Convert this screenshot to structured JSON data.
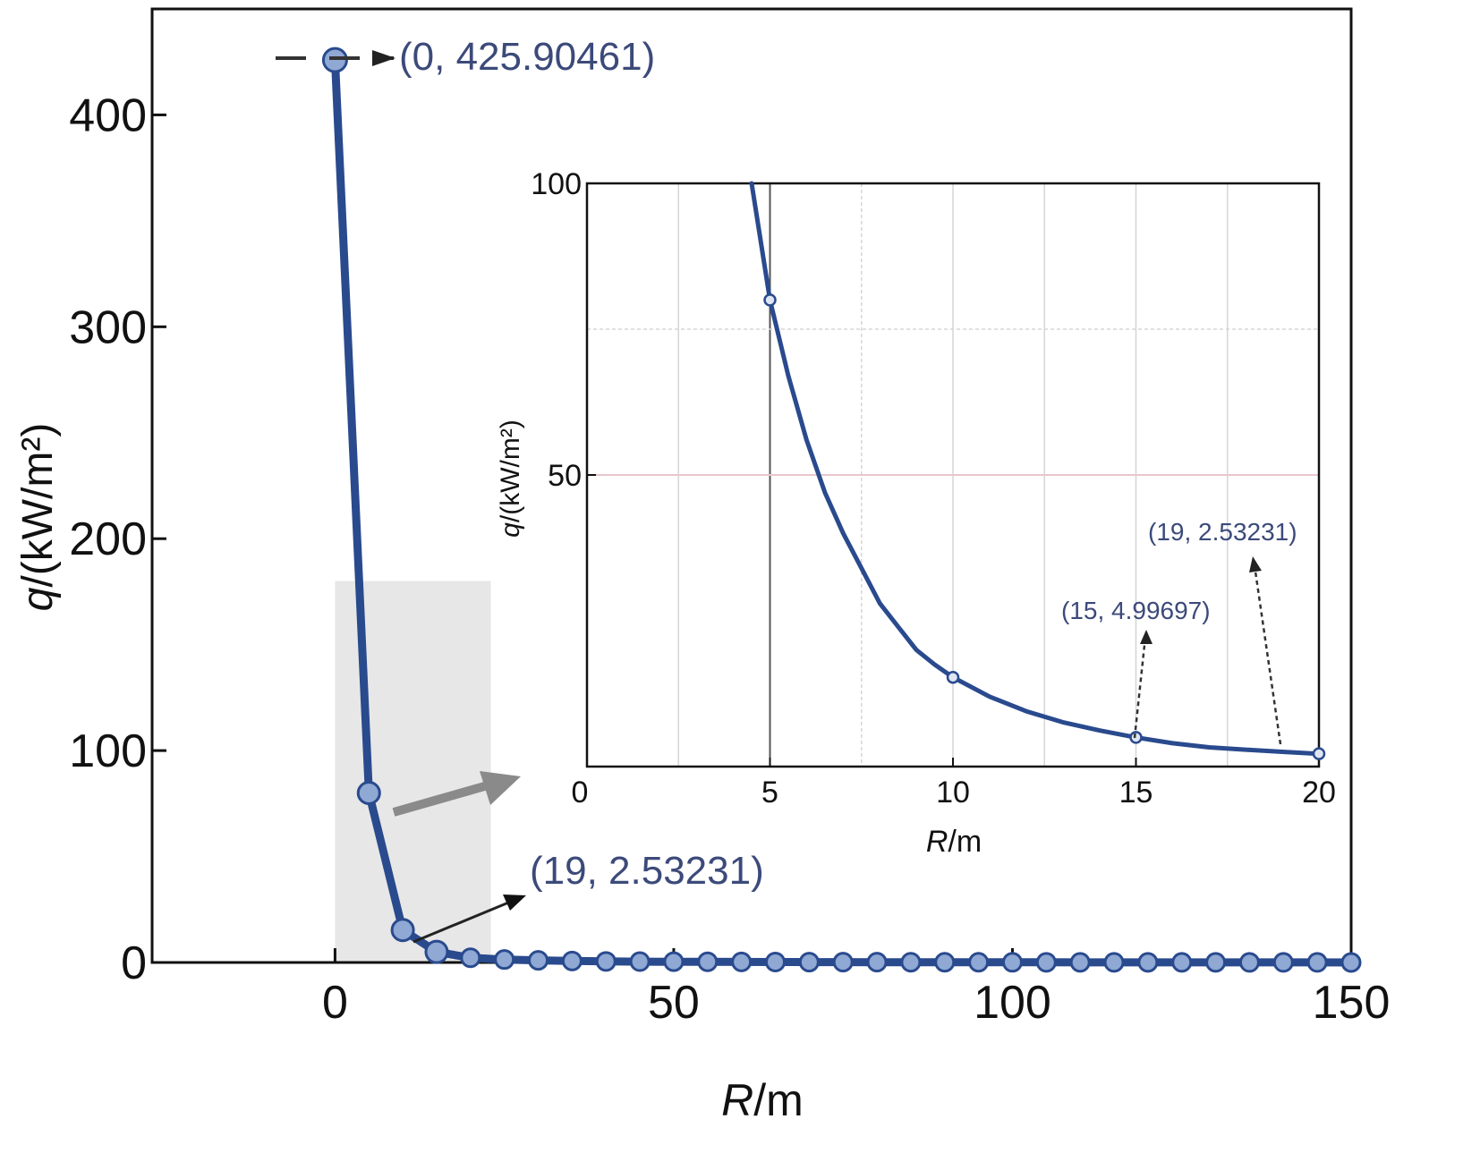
{
  "chart_data": [
    {
      "type": "line",
      "xlabel_var": "R",
      "xlabel_unit": "/m",
      "ylabel_var": "q",
      "ylabel_unit": "/(kW/m²)",
      "xlim": [
        -27,
        150
      ],
      "ylim": [
        0,
        450
      ],
      "xticks": [
        0,
        50,
        100,
        150
      ],
      "yticks": [
        0,
        100,
        200,
        300,
        400
      ],
      "xtick_labels": [
        "0",
        "50",
        "100",
        "150"
      ],
      "ytick_labels": [
        "0",
        "100",
        "200",
        "300",
        "400"
      ],
      "grid": false,
      "series": [
        {
          "x": [
            0,
            5,
            10,
            15,
            20,
            25,
            30,
            35,
            40,
            45,
            50,
            55,
            60,
            65,
            70,
            75,
            80,
            85,
            90,
            95,
            100,
            105,
            110,
            115,
            120,
            125,
            130,
            135,
            140,
            145,
            150
          ],
          "values": [
            425.90461,
            80,
            15.3,
            4.99697,
            2.2,
            1.4,
            1.0,
            0.7,
            0.5,
            0.4,
            0.35,
            0.3,
            0.25,
            0.2,
            0.18,
            0.16,
            0.14,
            0.12,
            0.1,
            0.09,
            0.08,
            0.07,
            0.06,
            0.05,
            0.05,
            0.04,
            0.04,
            0.03,
            0.03,
            0.03,
            0.02
          ]
        }
      ],
      "annotations": [
        {
          "text": "(0, 425.90461)",
          "x": 0,
          "y": 425.90461
        },
        {
          "text": "(19, 2.53231)",
          "x": 19,
          "y": 2.53231
        }
      ],
      "highlight_region": {
        "x": [
          0,
          23
        ],
        "y": [
          0,
          180
        ]
      }
    },
    {
      "type": "line",
      "xlabel_var": "R",
      "xlabel_unit": "/m",
      "ylabel_var": "q",
      "ylabel_unit": "/(kW/m²)",
      "xlim": [
        0,
        20
      ],
      "ylim": [
        0,
        100
      ],
      "xticks": [
        0,
        5,
        10,
        15,
        20
      ],
      "yticks": [
        50,
        100
      ],
      "xtick_labels": [
        "0",
        "5",
        "10",
        "15",
        "20"
      ],
      "ytick_labels": [
        "50",
        "100"
      ],
      "grid": true,
      "series": [
        {
          "x": [
            4.5,
            5,
            5.5,
            6,
            6.5,
            7,
            7.5,
            8,
            8.5,
            9,
            9.5,
            10,
            11,
            12,
            13,
            14,
            15,
            16,
            17,
            18,
            19,
            20
          ],
          "values": [
            100,
            80,
            67,
            56,
            47,
            40,
            34,
            28,
            24,
            20,
            17.5,
            15.3,
            12,
            9.5,
            7.6,
            6.2,
            4.99697,
            4.0,
            3.3,
            2.9,
            2.53231,
            2.2
          ]
        }
      ],
      "markers": [
        {
          "x": 5,
          "y": 80
        },
        {
          "x": 10,
          "y": 15.3
        },
        {
          "x": 15,
          "y": 4.99697
        },
        {
          "x": 20,
          "y": 2.2
        }
      ],
      "annotations": [
        {
          "text": "(15, 4.99697)",
          "x": 15,
          "y": 4.99697
        },
        {
          "text": "(19, 2.53231)",
          "x": 19,
          "y": 2.53231
        }
      ]
    }
  ],
  "colors": {
    "line": "#2a4a8e",
    "marker": "#8fa8d4",
    "annotation": "#3c4a7a",
    "highlight": "#e7e7e7",
    "arrow": "#8a8a8a",
    "grid_pink": "#e8c7cc",
    "grid_gray": "#d6d6d6"
  }
}
